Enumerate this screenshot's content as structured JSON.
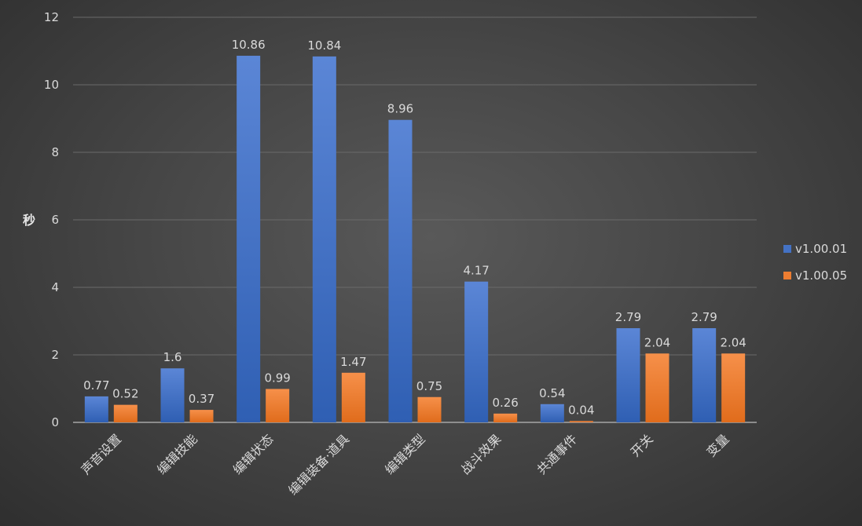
{
  "chart_data": {
    "type": "bar",
    "ylabel": "秒",
    "ylim": [
      0,
      12
    ],
    "yticks": [
      0,
      2,
      4,
      6,
      8,
      10,
      12
    ],
    "grid": true,
    "legend_position": "right",
    "categories": [
      "声音设置",
      "编辑技能",
      "编辑状态",
      "编辑装备·道具",
      "编辑类型",
      "战斗效果",
      "共通事件",
      "开关",
      "变量"
    ],
    "series": [
      {
        "name": "v1.00.01",
        "color": "#4472c4",
        "values": [
          0.77,
          1.6,
          10.86,
          10.84,
          8.96,
          4.17,
          0.54,
          2.79,
          2.79
        ]
      },
      {
        "name": "v1.00.05",
        "color": "#ed7d31",
        "values": [
          0.52,
          0.37,
          0.99,
          1.47,
          0.75,
          0.26,
          0.04,
          2.04,
          2.04
        ]
      }
    ]
  }
}
